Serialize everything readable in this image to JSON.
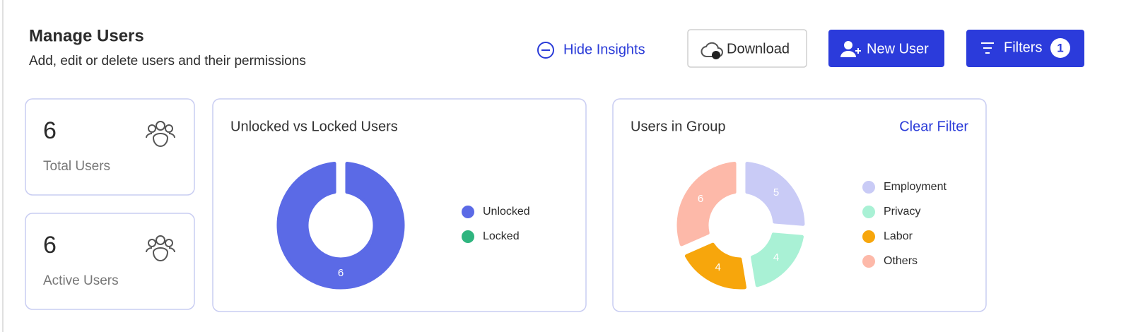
{
  "header": {
    "title": "Manage Users",
    "subtitle": "Add, edit or delete users and their permissions",
    "hide_insights": "Hide Insights",
    "download": "Download",
    "new_user": "New User",
    "filters": "Filters",
    "filters_count": 1
  },
  "stats": [
    {
      "value": 6,
      "label": "Total Users"
    },
    {
      "value": 6,
      "label": "Active Users"
    }
  ],
  "chart_data": [
    {
      "type": "donut",
      "title": "Unlocked vs Locked Users",
      "categories": [
        "Unlocked",
        "Locked"
      ],
      "values": [
        6,
        0
      ],
      "colors": [
        "#5b6ae6",
        "#2fb57f"
      ]
    },
    {
      "type": "donut",
      "title": "Users in Group",
      "action": "Clear Filter",
      "categories": [
        "Employment",
        "Privacy",
        "Labor",
        "Others"
      ],
      "values": [
        5,
        4,
        4,
        6
      ],
      "colors": [
        "#c9cbf6",
        "#a9f1d5",
        "#f7a60c",
        "#fdb9a9"
      ]
    }
  ]
}
